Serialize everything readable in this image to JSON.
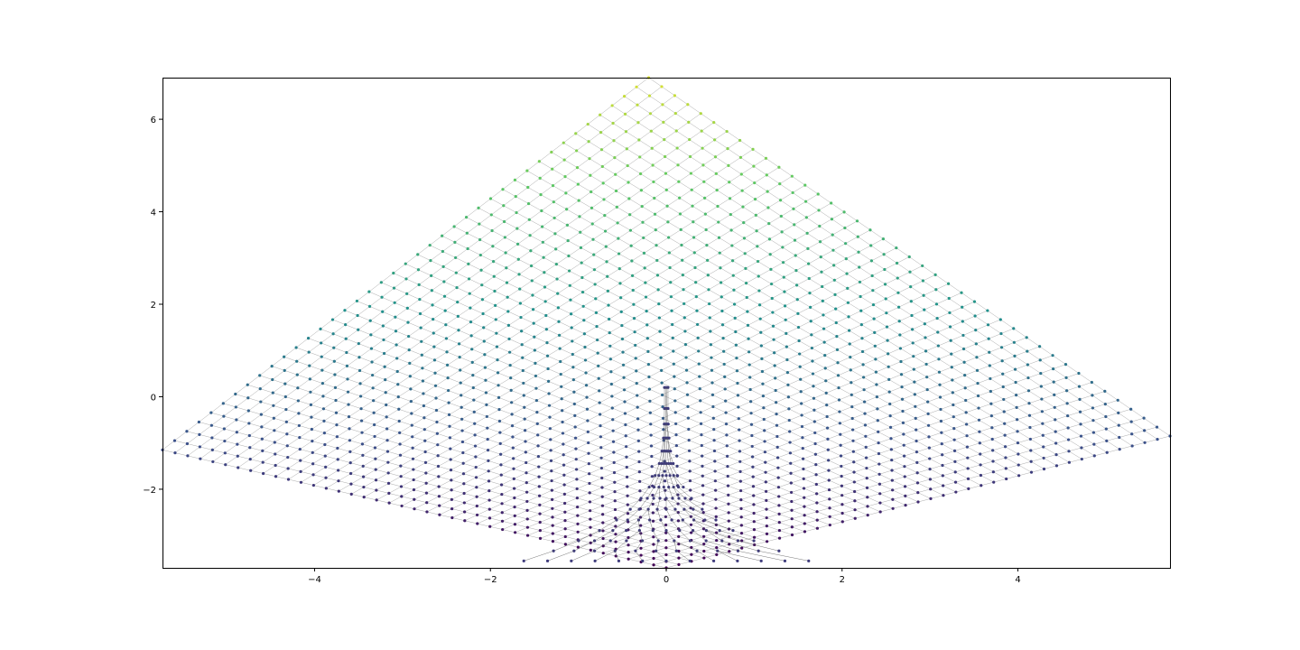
{
  "chart_data": {
    "type": "scatter",
    "title": "",
    "xlabel": "",
    "ylabel": "",
    "xlim": [
      -5.73,
      5.73
    ],
    "ylim": [
      -3.7,
      6.9
    ],
    "grid": false,
    "legend": "none",
    "xticks": [
      -4,
      -2,
      0,
      2,
      4
    ],
    "xtick_labels": [
      "−4",
      "−2",
      "0",
      "2",
      "4"
    ],
    "yticks": [
      -2,
      0,
      2,
      4,
      6
    ],
    "ytick_labels": [
      "−2",
      "0",
      "2",
      "4",
      "6"
    ],
    "description_of_marks": "Warped square lattice of nodes connected by thin gray edges; nodes coloured by a viridis gradient along the vertical axis",
    "colormap": [
      "#440154",
      "#3b528b",
      "#21918c",
      "#5ec962",
      "#fde725"
    ],
    "edge_color": "#888888",
    "lattice_corners": {
      "top": [
        -0.2,
        6.9
      ],
      "left": [
        -5.73,
        -1.15
      ],
      "right": [
        5.73,
        -0.85
      ],
      "bottom": [
        0.0,
        -3.7
      ]
    },
    "spike": {
      "x": 0.0,
      "y_top": 0.2,
      "y_base": -3.55
    },
    "series": [
      {
        "values_note": "sampled lattice nodes (x, y)",
        "points": [
          [
            -0.2,
            6.9
          ],
          [
            0.5,
            6.2
          ],
          [
            1.5,
            5.2
          ],
          [
            2.5,
            4.1
          ],
          [
            3.5,
            2.9
          ],
          [
            4.5,
            1.4
          ],
          [
            5.73,
            -0.85
          ],
          [
            -0.9,
            6.2
          ],
          [
            -1.9,
            5.2
          ],
          [
            -2.9,
            4.1
          ],
          [
            -3.9,
            2.6
          ],
          [
            -4.8,
            0.8
          ],
          [
            -5.73,
            -1.15
          ],
          [
            -4.5,
            -2.1
          ],
          [
            -3.3,
            -2.8
          ],
          [
            -2.0,
            -3.4
          ],
          [
            -1.0,
            -3.6
          ],
          [
            0.0,
            -3.7
          ],
          [
            1.0,
            -3.6
          ],
          [
            2.0,
            -3.5
          ],
          [
            3.0,
            -3.1
          ],
          [
            4.0,
            -2.5
          ],
          [
            5.0,
            -1.6
          ],
          [
            0.0,
            0.2
          ],
          [
            0.0,
            -1.5
          ],
          [
            0.0,
            -2.8
          ]
        ]
      }
    ]
  }
}
